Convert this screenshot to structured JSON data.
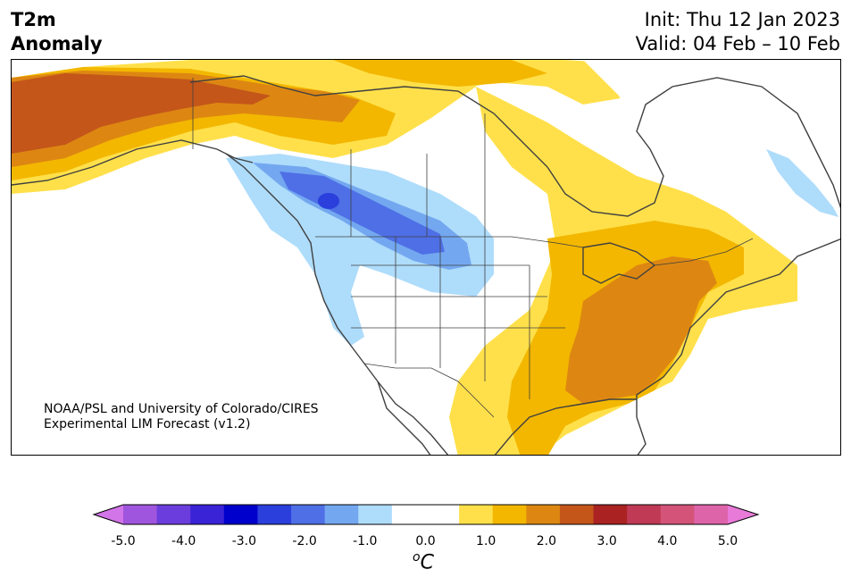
{
  "header": {
    "variable_line1": "T2m",
    "variable_line2": "Anomaly",
    "init": "Init: Thu 12 Jan 2023",
    "valid": "Valid: 04 Feb – 10 Feb"
  },
  "credit": {
    "line1": "NOAA/PSL and University of Colorado/CIRES",
    "line2": "Experimental LIM Forecast (v1.2)"
  },
  "colorbar": {
    "tick_labels": [
      "-5.0",
      "-4.0",
      "-3.0",
      "-2.0",
      "-1.0",
      "0.0",
      "1.0",
      "2.0",
      "3.0",
      "4.0",
      "5.0"
    ],
    "unit_symbol": "o",
    "unit_letter": "C",
    "colors": [
      "#d275e8",
      "#9f55dd",
      "#6b3ddc",
      "#3a22d6",
      "#0000cc",
      "#2a3fdb",
      "#4f6fe6",
      "#73a8f0",
      "#aedcfb",
      "#ffffff",
      "#ffffff",
      "#ffe04a",
      "#f3b700",
      "#dd8712",
      "#c4561a",
      "#aa2222",
      "#c03a55",
      "#d45378",
      "#de64aa",
      "#e87ad8"
    ]
  },
  "map": {
    "colors": {
      "land_outline": "#404040",
      "cold_light": "#aedcfb",
      "cold_medium": "#73a8f0",
      "cold_strong": "#4f6fe6",
      "cold_core": "#2a3fdb",
      "warm_light": "#ffe04a",
      "warm_medium": "#f3b700",
      "warm_strong": "#dd8712",
      "warm_deep": "#c4561a"
    }
  }
}
